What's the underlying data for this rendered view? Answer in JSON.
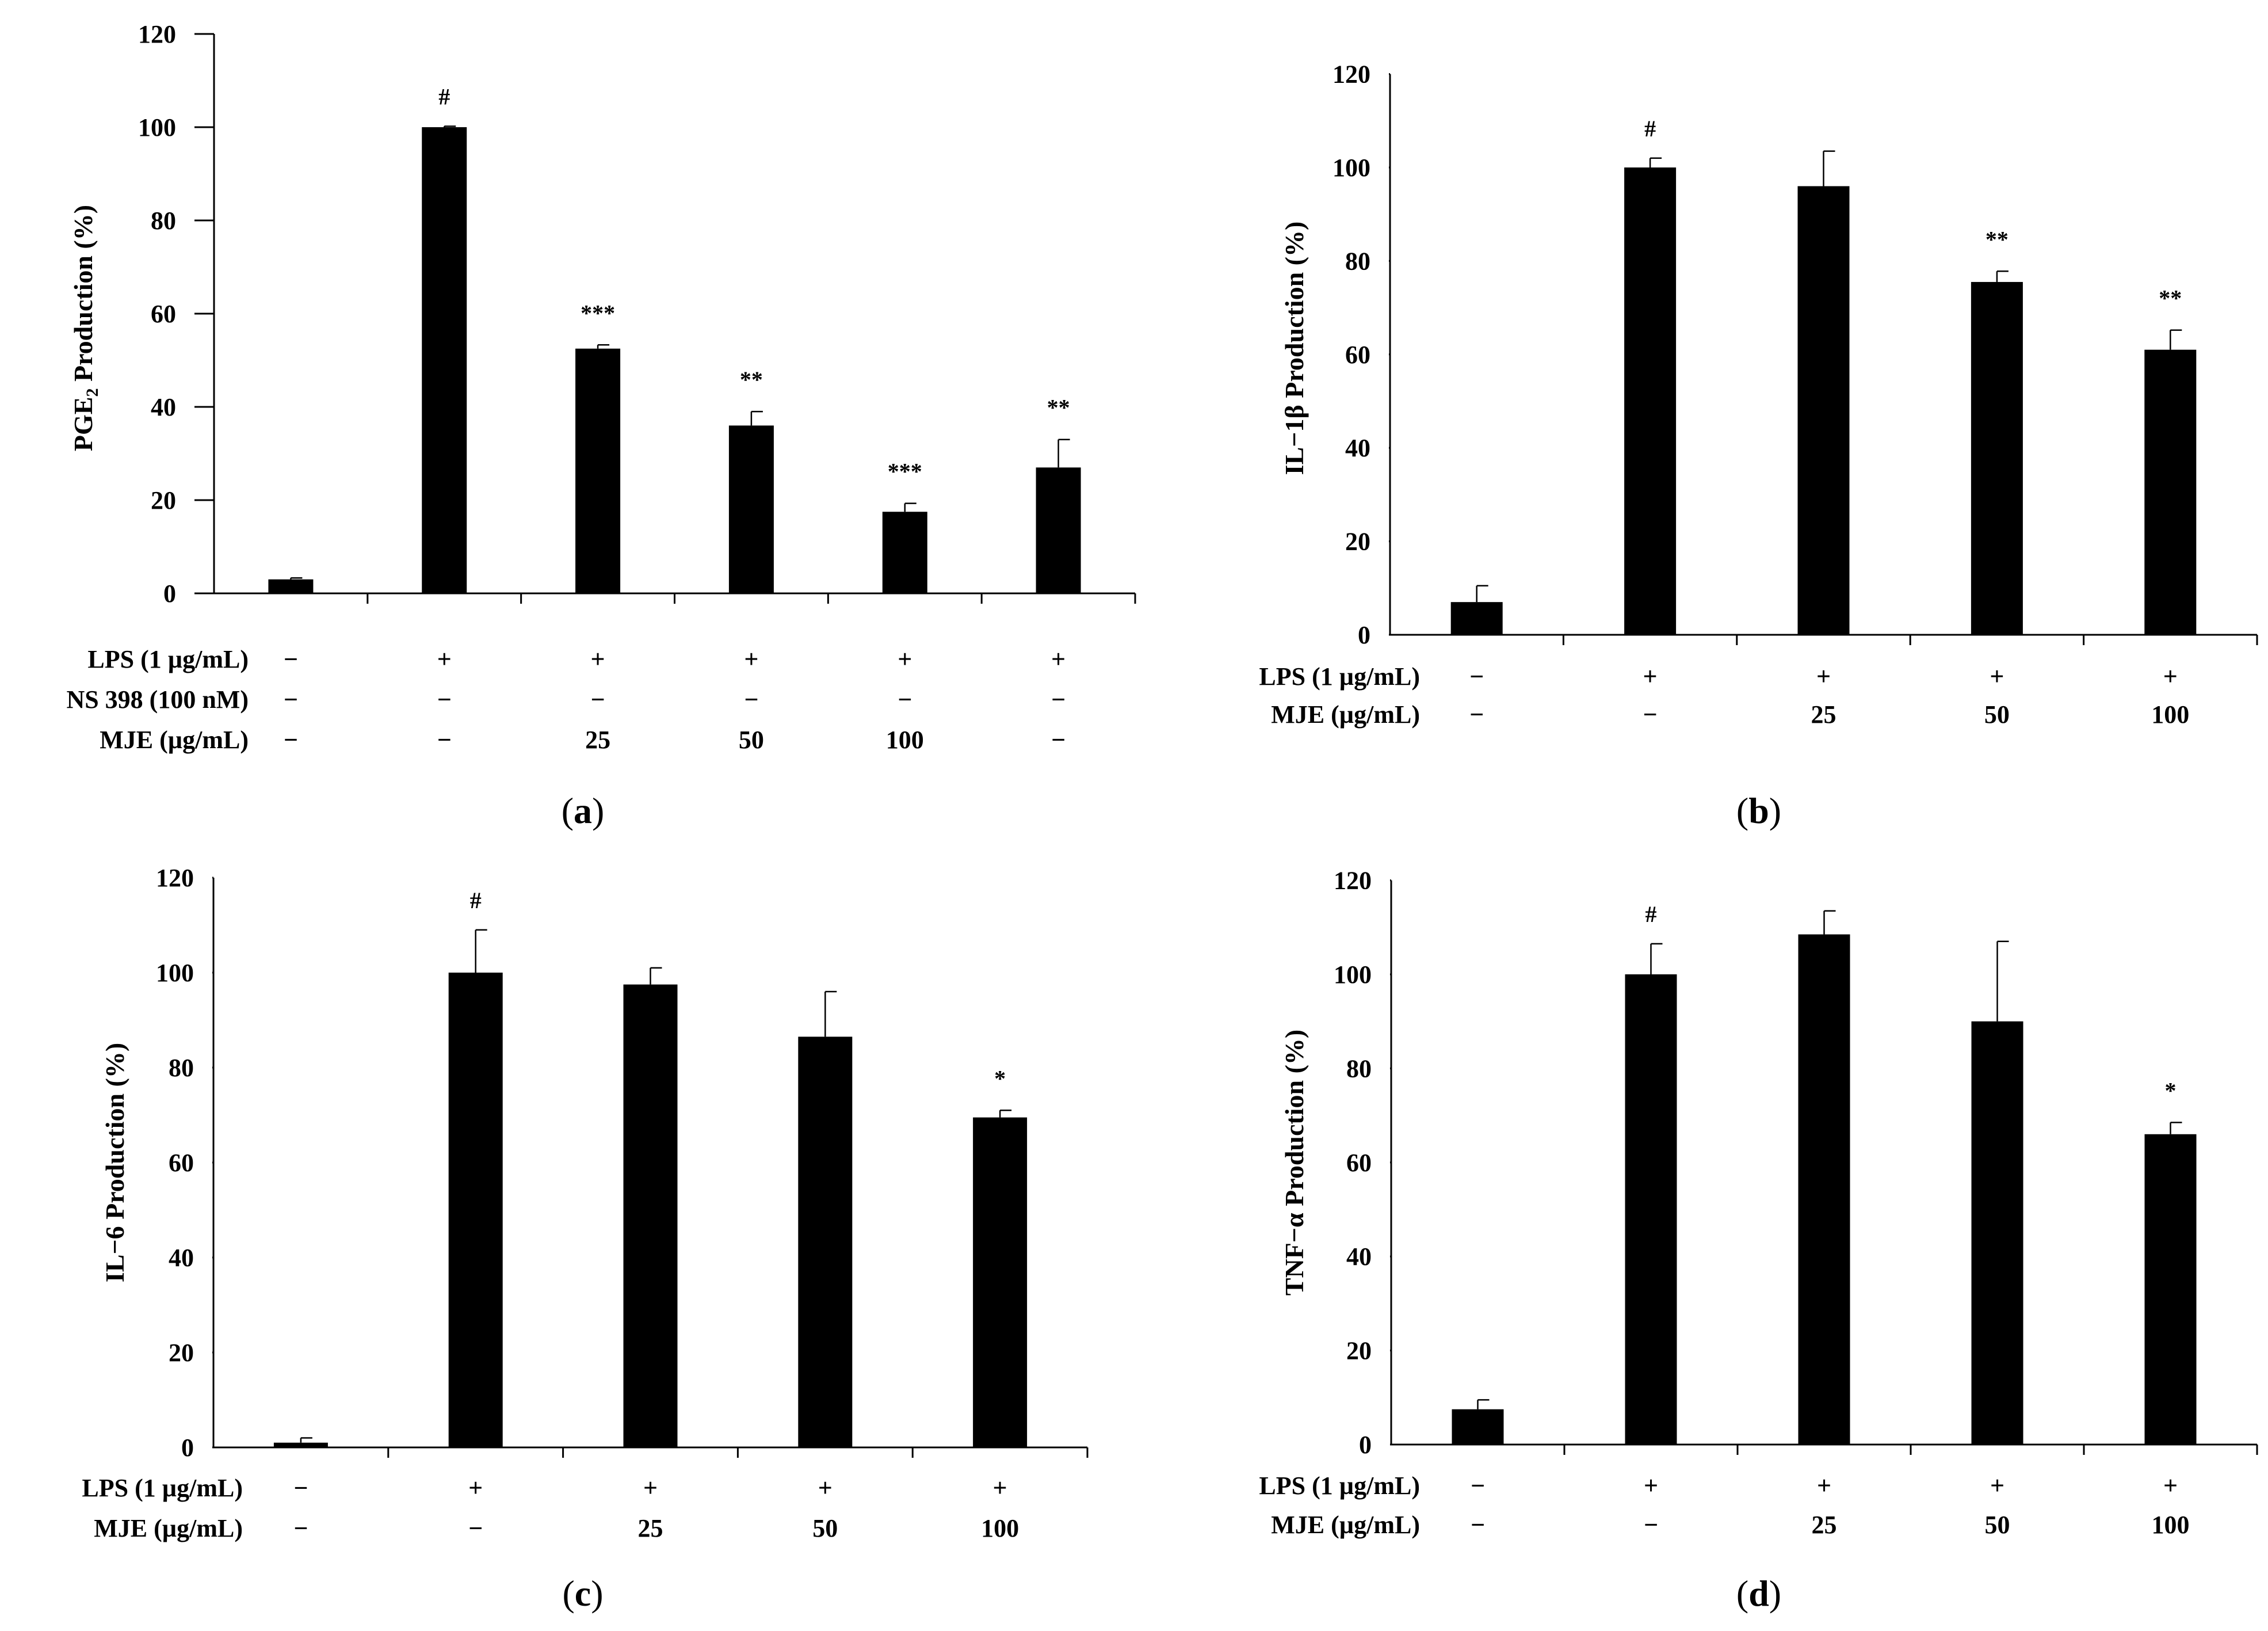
{
  "figure": {
    "charts": [
      {
        "panel": "a",
        "caption": {
          "open": "(",
          "letter": "a",
          "close": ")"
        },
        "ylabel_main": "PGE",
        "ylabel_sub": "2",
        "ylabel_rest": " Production (%)",
        "conditions": [
          {
            "label": "LPS (1 µg/mL)",
            "values": [
              "−",
              "+",
              "+",
              "+",
              "+",
              "+"
            ]
          },
          {
            "label": "NS 398 (100 nM)",
            "values": [
              "−",
              "−",
              "−",
              "−",
              "−",
              "−"
            ]
          },
          {
            "label": "MJE (µg/mL)",
            "values": [
              "−",
              "−",
              "25",
              "50",
              "100",
              "−"
            ]
          }
        ]
      },
      {
        "panel": "b",
        "caption": {
          "open": "(",
          "letter": "b",
          "close": ")"
        },
        "ylabel_main": "IL−1β Production (%)",
        "conditions": [
          {
            "label": "LPS (1 µg/mL)",
            "values": [
              "−",
              "+",
              "+",
              "+",
              "+"
            ]
          },
          {
            "label": "MJE (µg/mL)",
            "values": [
              "−",
              "−",
              "25",
              "50",
              "100"
            ]
          }
        ]
      },
      {
        "panel": "c",
        "caption": {
          "open": "(",
          "letter": "c",
          "close": ")"
        },
        "ylabel_main": "IL−6 Production (%)",
        "conditions": [
          {
            "label": "LPS (1 µg/mL)",
            "values": [
              "−",
              "+",
              "+",
              "+",
              "+"
            ]
          },
          {
            "label": "MJE (µg/mL)",
            "values": [
              "−",
              "−",
              "25",
              "50",
              "100"
            ]
          }
        ]
      },
      {
        "panel": "d",
        "caption": {
          "open": "(",
          "letter": "d",
          "close": ")"
        },
        "ylabel_main": "TNF−α  Production (%)",
        "conditions": [
          {
            "label": "LPS (1 µg/mL)",
            "values": [
              "−",
              "+",
              "+",
              "+",
              "+"
            ]
          },
          {
            "label": "MJE (µg/mL)",
            "values": [
              "−",
              "−",
              "25",
              "50",
              "100"
            ]
          }
        ]
      }
    ]
  },
  "chart_data": [
    {
      "type": "bar",
      "panel": "a",
      "ylabel": "PGE2 Production (%)",
      "ylim": [
        0,
        120
      ],
      "yticks": [
        0,
        20,
        40,
        60,
        80,
        100,
        120
      ],
      "values": [
        3,
        100,
        52.5,
        36,
        17.5,
        27
      ],
      "errors": [
        0.3,
        0.2,
        0.8,
        3,
        1.8,
        6
      ],
      "significance": [
        "",
        "#",
        "***",
        "**",
        "***",
        "**"
      ]
    },
    {
      "type": "bar",
      "panel": "b",
      "ylabel": "IL−1β Production (%)",
      "ylim": [
        0,
        120
      ],
      "yticks": [
        0,
        20,
        40,
        60,
        80,
        100,
        120
      ],
      "values": [
        7,
        100,
        96,
        75.5,
        61
      ],
      "errors": [
        3.5,
        2,
        7.5,
        2.3,
        4.2
      ],
      "significance": [
        "",
        "#",
        "",
        "**",
        "**"
      ]
    },
    {
      "type": "bar",
      "panel": "c",
      "ylabel": "IL−6 Production (%)",
      "ylim": [
        0,
        120
      ],
      "yticks": [
        0,
        20,
        40,
        60,
        80,
        100,
        120
      ],
      "values": [
        1,
        100,
        97.5,
        86.5,
        69.5
      ],
      "errors": [
        1,
        9,
        3.5,
        9.5,
        1.5
      ],
      "significance": [
        "",
        "#",
        "",
        "",
        "*"
      ]
    },
    {
      "type": "bar",
      "panel": "d",
      "ylabel": "TNF−α  Production (%)",
      "ylim": [
        0,
        120
      ],
      "yticks": [
        0,
        20,
        40,
        60,
        80,
        100,
        120
      ],
      "values": [
        7.5,
        100,
        108.5,
        90,
        66
      ],
      "errors": [
        2,
        6.5,
        5,
        17,
        2.5
      ],
      "significance": [
        "",
        "#",
        "",
        "",
        "*"
      ]
    }
  ]
}
